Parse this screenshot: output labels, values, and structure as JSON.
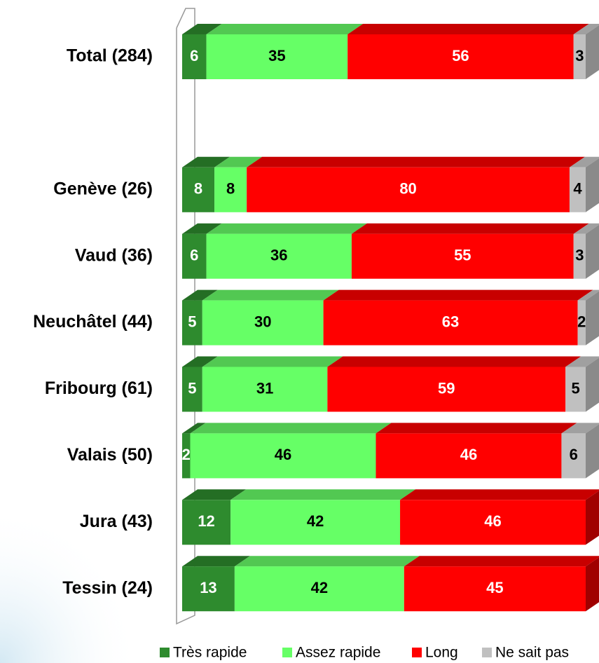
{
  "chart_data": {
    "type": "stacked_bar_3d",
    "categories": [
      "Total (284)",
      null,
      "Genève (26)",
      "Vaud (36)",
      "Neuchâtel (44)",
      "Fribourg (61)",
      "Valais (50)",
      "Jura (43)",
      "Tessin (24)"
    ],
    "series": [
      {
        "name": "Très rapide",
        "color": "#2e8b2e",
        "top_color": "#246e24",
        "label_color": "#ffffff",
        "values": [
          6,
          null,
          8,
          6,
          5,
          5,
          2,
          12,
          13
        ]
      },
      {
        "name": "Assez rapide",
        "color": "#66ff66",
        "top_color": "#52c852",
        "label_color": "#000000",
        "values": [
          35,
          null,
          8,
          36,
          30,
          31,
          46,
          42,
          42
        ]
      },
      {
        "name": "Long",
        "color": "#ff0000",
        "top_color": "#c80000",
        "label_color": "#ffffff",
        "values": [
          56,
          null,
          80,
          55,
          63,
          59,
          46,
          46,
          45
        ]
      },
      {
        "name": "Ne sait pas",
        "color": "#c0c0c0",
        "top_color": "#a0a0a0",
        "label_color": "#000000",
        "values": [
          3,
          null,
          4,
          3,
          2,
          5,
          6,
          null,
          null
        ]
      }
    ],
    "xlim": [
      0,
      100
    ]
  }
}
